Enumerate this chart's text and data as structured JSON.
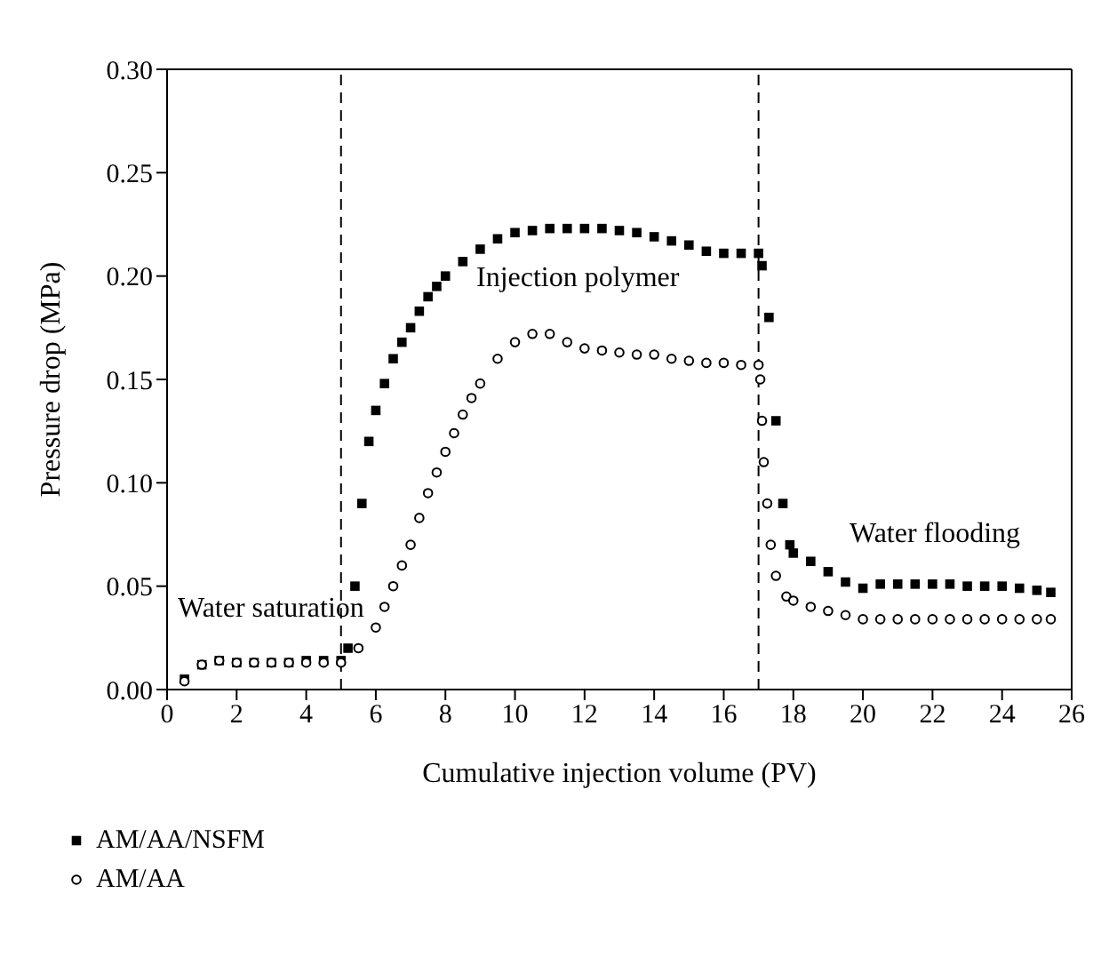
{
  "chart_data": {
    "type": "scatter",
    "xlabel": "Cumulative injection volume (PV)",
    "ylabel": "Pressure drop (MPa)",
    "xlim": [
      0,
      26
    ],
    "xticks": [
      0,
      2,
      4,
      6,
      8,
      10,
      12,
      14,
      16,
      18,
      20,
      22,
      24,
      26
    ],
    "ylim": [
      0,
      0.3
    ],
    "yticks": [
      {
        "value": 0,
        "label": "0.00"
      },
      {
        "value": 0.05,
        "label": "0.05"
      },
      {
        "value": 0.1,
        "label": "0.10"
      },
      {
        "value": 0.15,
        "label": "0.15"
      },
      {
        "value": 0.2,
        "label": "0.20"
      },
      {
        "value": 0.25,
        "label": "0.25"
      },
      {
        "value": 0.3,
        "label": "0.30"
      }
    ],
    "grid": false,
    "legend": "bottom left",
    "series": [
      {
        "name": "AM/AA/NSFM",
        "color": "#000000",
        "marker": "square",
        "x": [
          0.5,
          1,
          1.5,
          2,
          2.5,
          3,
          3.5,
          4,
          4.5,
          5,
          5.2,
          5.4,
          5.6,
          5.8,
          6,
          6.25,
          6.5,
          6.75,
          7,
          7.25,
          7.5,
          7.75,
          8,
          8.5,
          9,
          9.5,
          10,
          10.5,
          11,
          11.5,
          12,
          12.5,
          13,
          13.5,
          14,
          14.5,
          15,
          15.5,
          16,
          16.5,
          17,
          17.1,
          17.3,
          17.5,
          17.7,
          17.9,
          18,
          18.5,
          19,
          19.5,
          20,
          20.5,
          21,
          21.5,
          22,
          22.5,
          23,
          23.5,
          24,
          24.5,
          25,
          25.4
        ],
        "values": [
          0.005,
          0.012,
          0.014,
          0.013,
          0.013,
          0.013,
          0.013,
          0.014,
          0.014,
          0.014,
          0.02,
          0.05,
          0.09,
          0.12,
          0.135,
          0.148,
          0.16,
          0.168,
          0.175,
          0.183,
          0.19,
          0.195,
          0.2,
          0.207,
          0.213,
          0.218,
          0.221,
          0.222,
          0.223,
          0.223,
          0.223,
          0.223,
          0.222,
          0.221,
          0.219,
          0.217,
          0.215,
          0.212,
          0.211,
          0.211,
          0.211,
          0.205,
          0.18,
          0.13,
          0.09,
          0.07,
          0.066,
          0.062,
          0.057,
          0.052,
          0.049,
          0.051,
          0.051,
          0.051,
          0.051,
          0.051,
          0.05,
          0.05,
          0.05,
          0.049,
          0.048,
          0.047
        ]
      },
      {
        "name": "AM/AA",
        "color": "#000000",
        "marker": "circle",
        "x": [
          0.5,
          1,
          1.5,
          2,
          2.5,
          3,
          3.5,
          4,
          4.5,
          5,
          5.5,
          6,
          6.25,
          6.5,
          6.75,
          7,
          7.25,
          7.5,
          7.75,
          8,
          8.25,
          8.5,
          8.75,
          9,
          9.5,
          10,
          10.5,
          11,
          11.5,
          12,
          12.5,
          13,
          13.5,
          14,
          14.5,
          15,
          15.5,
          16,
          16.5,
          17,
          17.05,
          17.1,
          17.15,
          17.25,
          17.35,
          17.5,
          17.8,
          18,
          18.5,
          19,
          19.5,
          20,
          20.5,
          21,
          21.5,
          22,
          22.5,
          23,
          23.5,
          24,
          24.5,
          25,
          25.4
        ],
        "values": [
          0.004,
          0.012,
          0.014,
          0.013,
          0.013,
          0.013,
          0.013,
          0.013,
          0.013,
          0.013,
          0.02,
          0.03,
          0.04,
          0.05,
          0.06,
          0.07,
          0.083,
          0.095,
          0.105,
          0.115,
          0.124,
          0.133,
          0.141,
          0.148,
          0.16,
          0.168,
          0.172,
          0.172,
          0.168,
          0.165,
          0.164,
          0.163,
          0.162,
          0.162,
          0.16,
          0.159,
          0.158,
          0.158,
          0.157,
          0.157,
          0.15,
          0.13,
          0.11,
          0.09,
          0.07,
          0.055,
          0.045,
          0.043,
          0.04,
          0.038,
          0.036,
          0.034,
          0.034,
          0.034,
          0.034,
          0.034,
          0.034,
          0.034,
          0.034,
          0.034,
          0.034,
          0.034,
          0.034
        ]
      }
    ],
    "ref_lines": [
      {
        "axis": "x",
        "value": 5,
        "line_style": "dashed",
        "color": "#000000"
      },
      {
        "axis": "x",
        "value": 17,
        "line_style": "dashed",
        "color": "#000000"
      }
    ],
    "annotations": [
      "Water saturation",
      "Injection polymer",
      "Water flooding"
    ]
  }
}
